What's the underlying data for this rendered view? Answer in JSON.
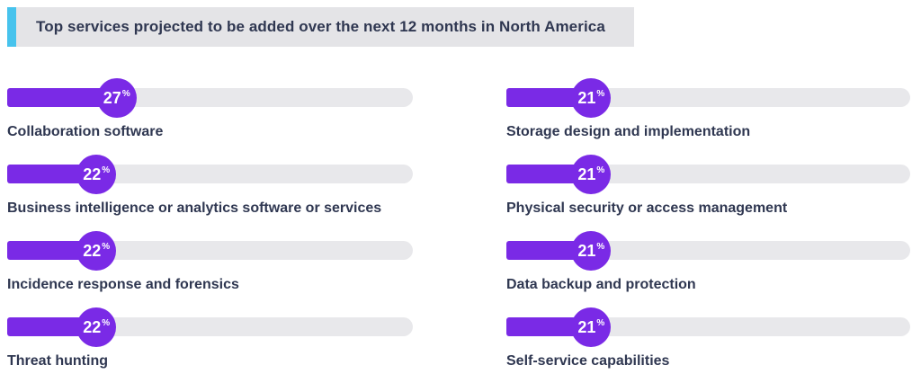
{
  "chart_data": {
    "type": "bar",
    "orientation": "horizontal",
    "title": "Top services projected to be added over the next 12 months in North America",
    "unit": "%",
    "xlim": [
      0,
      100
    ],
    "grid": false,
    "legend": false,
    "layout": "two columns of horizontal progress bars; circular value bubble at end of each fill; category label below each bar; left column rows 0-3, right column rows 4-7",
    "categories": [
      "Collaboration software",
      "Business intelligence or analytics software or services",
      "Incidence response and forensics",
      "Threat hunting",
      "Storage design and implementation",
      "Physical security or access management",
      "Data backup and protection",
      "Self-service capabilities"
    ],
    "values": [
      27,
      22,
      22,
      22,
      21,
      21,
      21,
      21
    ]
  },
  "theme": {
    "bar_fill": "#7a2ae6",
    "bar_track": "#e8e8eb",
    "title_bg": "#e4e4e7",
    "accent": "#47c3ed",
    "text": "#2f3751",
    "bubble_text": "#ffffff",
    "background": "#ffffff"
  }
}
